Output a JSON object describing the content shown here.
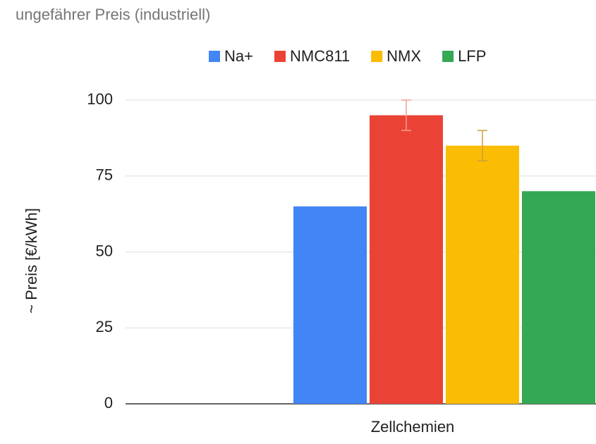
{
  "chart_data": {
    "type": "bar",
    "title": "ungefährer Preis (industriell)",
    "y_label": "~ Preis [€/kWh]",
    "categories": [
      "Zellchemien"
    ],
    "series": [
      {
        "name": "Na+",
        "color": "#4285f4",
        "values": [
          65
        ]
      },
      {
        "name": "NMC811",
        "color": "#ea4335",
        "values": [
          95
        ],
        "errors": [
          5
        ]
      },
      {
        "name": "NMX",
        "color": "#fbbc04",
        "values": [
          85
        ],
        "errors": [
          5
        ]
      },
      {
        "name": "LFP",
        "color": "#34a853",
        "values": [
          70
        ]
      }
    ],
    "ylim": [
      0,
      100
    ],
    "yticks": [
      0,
      25,
      50,
      75,
      100
    ],
    "grid": true,
    "legend": "top"
  }
}
